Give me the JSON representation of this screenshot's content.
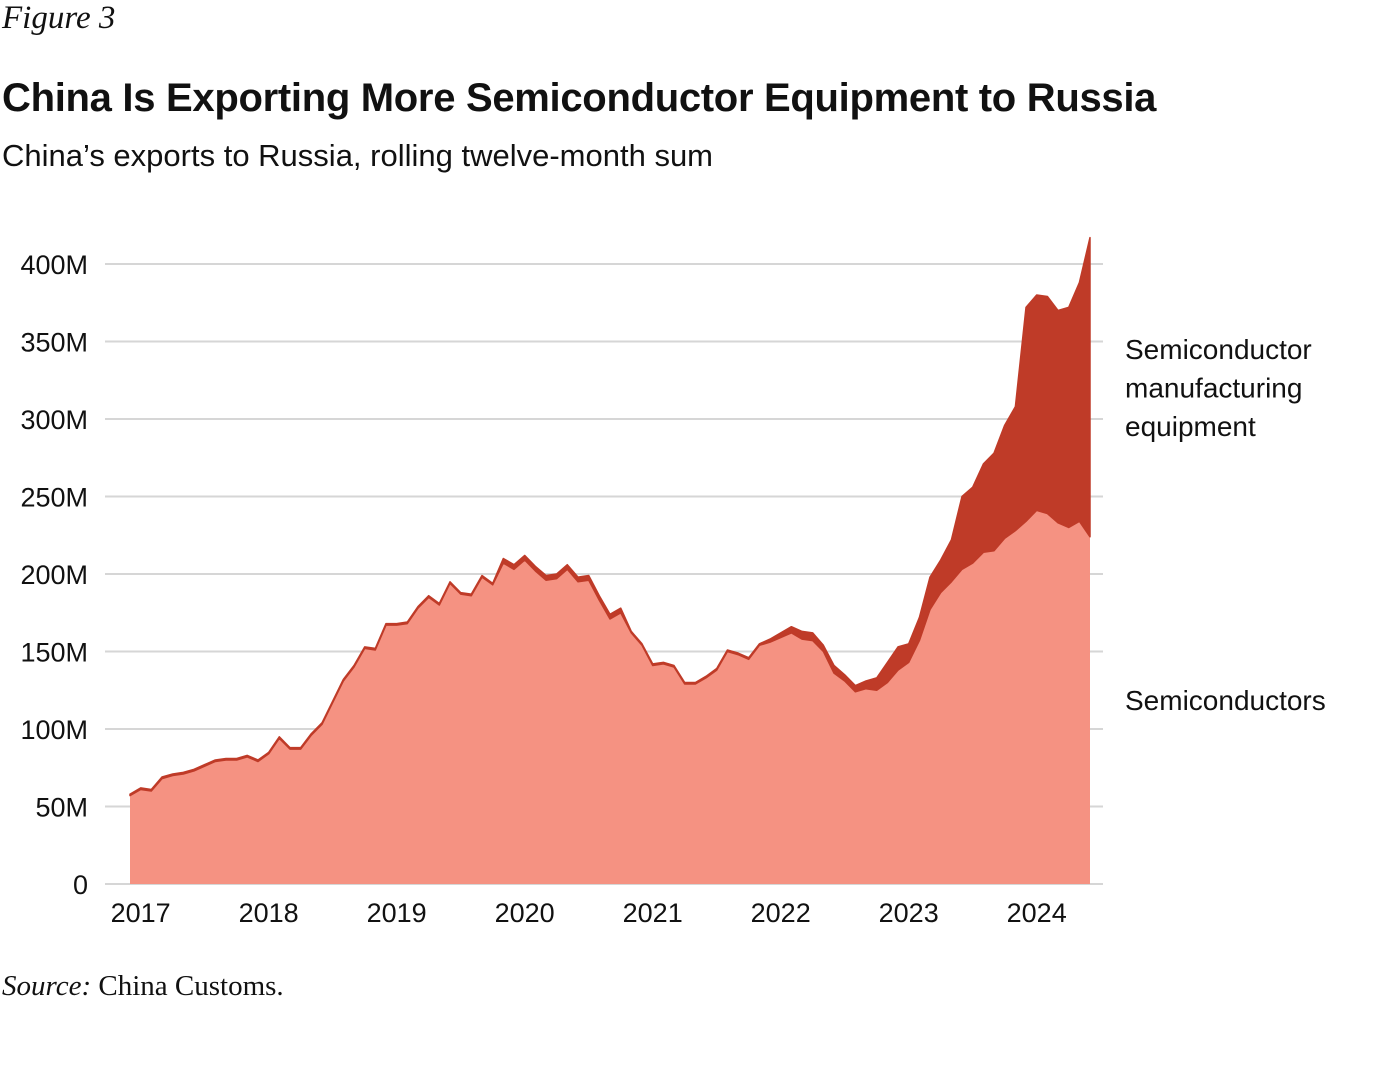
{
  "figure_label": "Figure 3",
  "source_prefix": "Source:",
  "source_text": "China Customs.",
  "chart_data": {
    "type": "area",
    "stacked": true,
    "title": "China Is Exporting More Semiconductor Equipment to Russia",
    "subtitle": "China’s exports to Russia, rolling twelve-month sum",
    "x_start": "2017-01",
    "x_end": "2024-07",
    "x_frequency": "monthly",
    "xlabel": "",
    "ylabel": "",
    "ylim": [
      0,
      400
    ],
    "y_unit": "M",
    "y_ticks": [
      0,
      50,
      100,
      150,
      200,
      250,
      300,
      350,
      400
    ],
    "y_tick_labels": [
      "0",
      "50M",
      "100M",
      "150M",
      "200M",
      "250M",
      "300M",
      "350M",
      "400M"
    ],
    "x_tick_labels": [
      "2017",
      "2018",
      "2019",
      "2020",
      "2021",
      "2022",
      "2023",
      "2024"
    ],
    "grid": true,
    "legend": "direct labels right",
    "series": [
      {
        "name": "Semiconductors",
        "label_lines": [
          "Semiconductors"
        ],
        "color": "#f59282",
        "values": [
          57,
          61,
          60,
          68,
          70,
          71,
          73,
          76,
          79,
          80,
          80,
          82,
          79,
          84,
          94,
          87,
          87,
          96,
          103,
          117,
          131,
          140,
          152,
          151,
          167,
          167,
          168,
          178,
          185,
          180,
          194,
          187,
          186,
          198,
          193,
          207,
          203,
          209,
          202,
          196,
          197,
          203,
          195,
          196,
          183,
          171,
          175,
          162,
          154,
          141,
          142,
          140,
          129,
          129,
          133,
          138,
          150,
          148,
          145,
          154,
          156,
          159,
          162,
          158,
          157,
          150,
          136,
          131,
          124,
          126,
          125,
          130,
          138,
          143,
          157,
          177,
          188,
          195,
          203,
          207,
          214,
          215,
          223,
          228,
          234,
          241,
          239,
          233,
          230,
          234,
          224
        ]
      },
      {
        "name": "Semiconductor manufacturing equipment",
        "label_lines": [
          "Semiconductor",
          "manufacturing",
          "equipment"
        ],
        "color": "#bf3b28",
        "values": [
          1,
          1,
          1,
          1,
          1,
          1,
          1,
          1,
          1,
          1,
          1,
          1,
          1,
          1,
          1,
          1,
          1,
          1,
          1,
          1,
          1,
          1,
          1,
          1,
          1,
          1,
          1,
          1,
          1,
          1,
          1,
          1,
          1,
          1,
          1,
          3,
          3,
          3,
          3,
          3,
          3,
          3,
          3,
          3,
          3,
          3,
          3,
          1,
          1,
          1,
          1,
          1,
          1,
          1,
          1,
          1,
          1,
          1,
          1,
          1,
          2,
          3,
          4,
          5,
          5,
          4,
          5,
          4,
          4,
          5,
          8,
          13,
          15,
          12,
          15,
          21,
          21,
          27,
          47,
          49,
          57,
          63,
          73,
          80,
          138,
          139,
          140,
          137,
          142,
          154,
          193
        ]
      }
    ]
  }
}
